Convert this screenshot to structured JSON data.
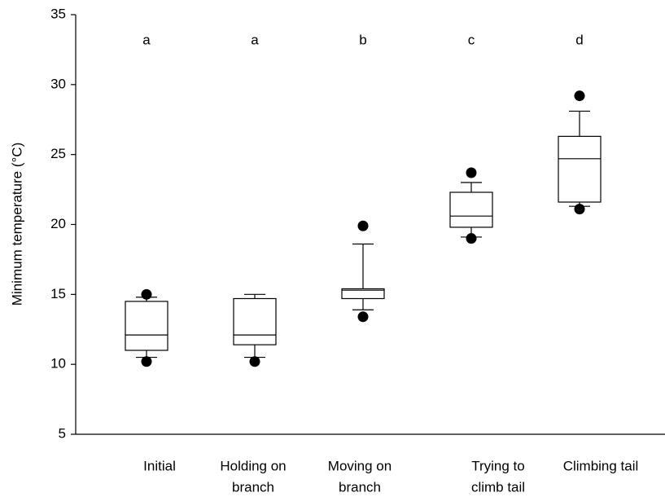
{
  "chart_data": {
    "type": "box",
    "y_label": "Minimum temperature (°C)",
    "categories": [
      [
        "Initial"
      ],
      [
        "Holding on",
        "branch"
      ],
      [
        "Moving on",
        "branch"
      ],
      [
        "Trying to",
        "climb tail"
      ],
      [
        "Climbing tail"
      ]
    ],
    "annotations": [
      "a",
      "a",
      "b",
      "c",
      "d"
    ],
    "boxes": [
      {
        "whislo": 10.5,
        "q1": 11.0,
        "med": 12.1,
        "q3": 14.5,
        "whishi": 14.8,
        "fliers": [
          10.2,
          15.0
        ]
      },
      {
        "whislo": 10.5,
        "q1": 11.4,
        "med": 12.1,
        "q3": 14.7,
        "whishi": 15.0,
        "fliers": [
          10.2
        ]
      },
      {
        "whislo": 13.9,
        "q1": 14.7,
        "med": 15.3,
        "q3": 15.4,
        "whishi": 18.6,
        "fliers": [
          13.4,
          19.9
        ]
      },
      {
        "whislo": 19.1,
        "q1": 19.8,
        "med": 20.6,
        "q3": 22.3,
        "whishi": 23.0,
        "fliers": [
          19.0,
          23.7
        ]
      },
      {
        "whislo": 21.3,
        "q1": 21.6,
        "med": 24.7,
        "q3": 26.3,
        "whishi": 28.1,
        "fliers": [
          21.1,
          29.2
        ]
      }
    ],
    "ylim": [
      5,
      35
    ],
    "yticks": [
      5,
      10,
      15,
      20,
      25,
      30,
      35
    ]
  }
}
